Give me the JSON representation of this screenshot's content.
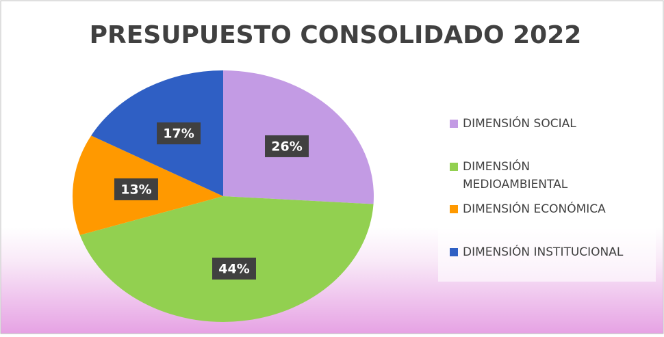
{
  "chart_data": {
    "type": "pie",
    "title": "PRESUPUESTO CONSOLIDADO 2022",
    "categories": [
      "DIMENSIÓN SOCIAL",
      "DIMENSIÓN MEDIOAMBIENTAL",
      "DIMENSIÓN ECONÓMICA",
      "DIMENSIÓN INSTITUCIONAL"
    ],
    "values": [
      26,
      44,
      13,
      17
    ],
    "value_labels": [
      "26%",
      "44%",
      "13%",
      "17%"
    ],
    "colors": [
      "#c39be4",
      "#92d050",
      "#ff9900",
      "#2f5fc4"
    ],
    "legend": "right"
  }
}
